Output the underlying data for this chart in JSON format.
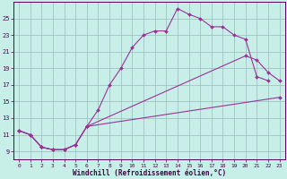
{
  "xlabel": "Windchill (Refroidissement éolien,°C)",
  "bg_color": "#c8eee8",
  "grid_color": "#99bbbb",
  "line_color": "#993399",
  "xlim": [
    -0.5,
    23.5
  ],
  "ylim": [
    8.0,
    27.0
  ],
  "xticks": [
    0,
    1,
    2,
    3,
    4,
    5,
    6,
    7,
    8,
    9,
    10,
    11,
    12,
    13,
    14,
    15,
    16,
    17,
    18,
    19,
    20,
    21,
    22,
    23
  ],
  "yticks": [
    9,
    11,
    13,
    15,
    17,
    19,
    21,
    23,
    25
  ],
  "c1_x": [
    0,
    1,
    2,
    3,
    4,
    5,
    6,
    7,
    8,
    9,
    10,
    11,
    12,
    13,
    14,
    15,
    16,
    17,
    18,
    19,
    20,
    21,
    22
  ],
  "c1_y": [
    11.5,
    11.0,
    9.5,
    9.2,
    9.2,
    9.8,
    12.0,
    14.0,
    17.0,
    19.0,
    21.5,
    23.0,
    23.5,
    23.5,
    26.2,
    25.5,
    25.0,
    24.0,
    24.0,
    23.0,
    22.5,
    18.0,
    17.5
  ],
  "c2_x": [
    0,
    1,
    2,
    3,
    4,
    5,
    6,
    20,
    21,
    22,
    23
  ],
  "c2_y": [
    11.5,
    11.0,
    9.5,
    9.2,
    9.2,
    9.8,
    12.0,
    20.5,
    20.0,
    18.5,
    17.5
  ],
  "c3_x": [
    0,
    1,
    2,
    3,
    4,
    5,
    6,
    23
  ],
  "c3_y": [
    11.5,
    11.0,
    9.5,
    9.2,
    9.2,
    9.8,
    12.0,
    15.5
  ],
  "marker": "D",
  "markersize": 2.0,
  "linewidth": 0.8
}
